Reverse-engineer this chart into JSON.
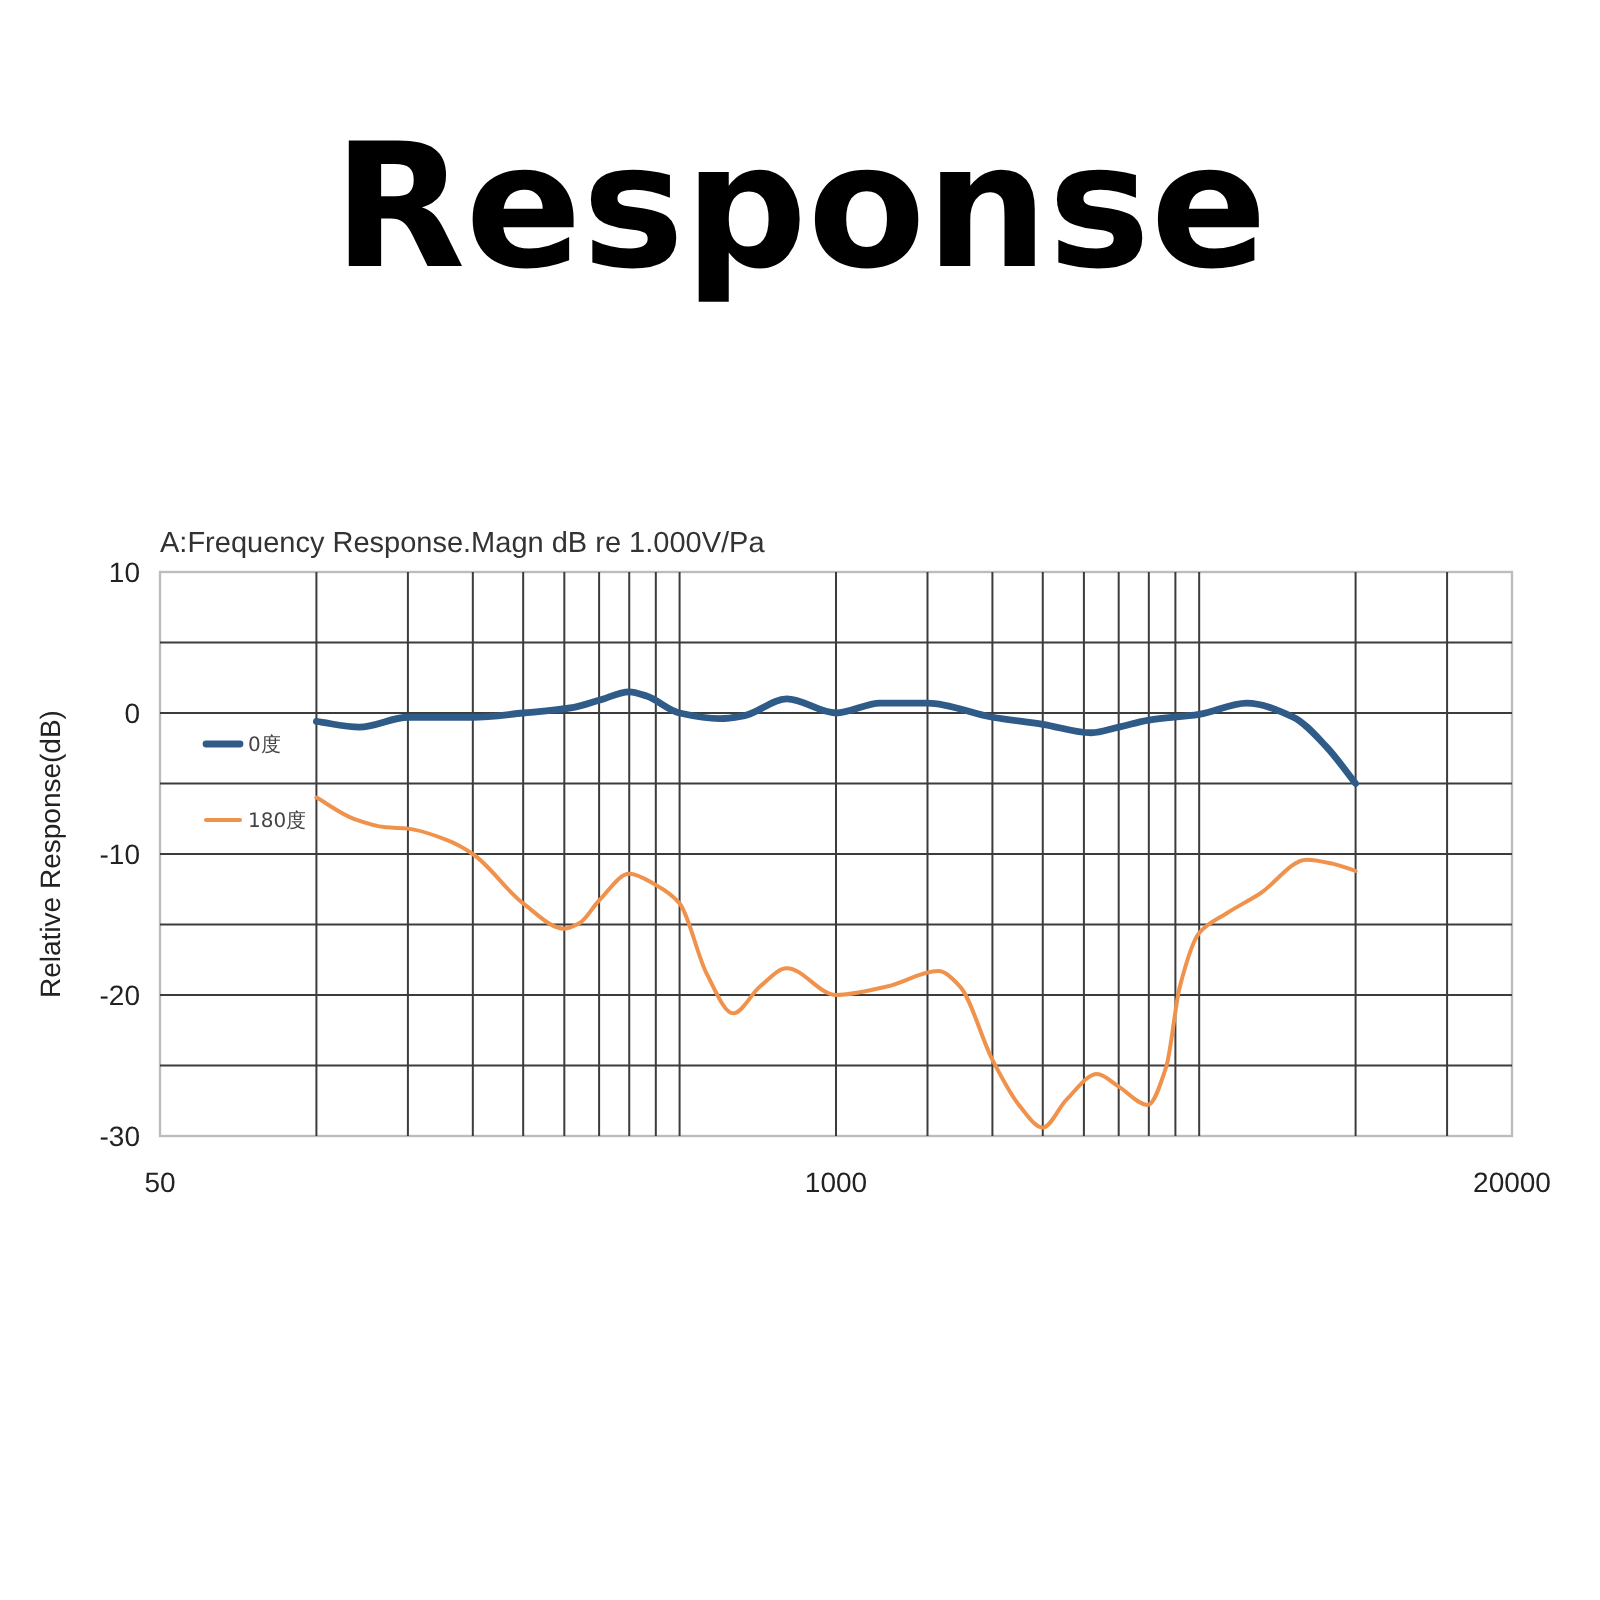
{
  "chart_data": {
    "type": "line",
    "title": "Response",
    "subtitle": "A:Frequency Response.Magn dB re 1.000V/Pa",
    "ylabel": "Relative Response(dB)",
    "log": "x",
    "xlim": [
      50,
      20000
    ],
    "xticks": [
      50,
      {
        "value": 100,
        "label": null
      },
      {
        "value": 150,
        "label": null
      },
      {
        "value": 200,
        "label": null
      },
      {
        "value": 250,
        "label": null
      },
      {
        "value": 300,
        "label": null
      },
      {
        "value": 350,
        "label": null
      },
      {
        "value": 400,
        "label": null
      },
      {
        "value": 450,
        "label": null
      },
      {
        "value": 500,
        "label": null
      },
      1000,
      {
        "value": 1500,
        "label": null
      },
      {
        "value": 2000,
        "label": null
      },
      {
        "value": 2500,
        "label": null
      },
      {
        "value": 3000,
        "label": null
      },
      {
        "value": 3500,
        "label": null
      },
      {
        "value": 4000,
        "label": null
      },
      {
        "value": 4500,
        "label": null
      },
      {
        "value": 5000,
        "label": null
      },
      {
        "value": 10000,
        "label": null
      },
      {
        "value": 15000,
        "label": null
      },
      20000
    ],
    "ylim": [
      -30,
      10
    ],
    "yticks": [
      -30,
      {
        "value": -25,
        "label": null
      },
      -20,
      {
        "value": -15,
        "label": null
      },
      -10,
      {
        "value": -5,
        "label": null
      },
      0,
      {
        "value": 5,
        "label": null
      },
      10
    ],
    "grid": true,
    "legend": "top left",
    "series": [
      {
        "name": "0度",
        "color": "#2e5b88",
        "x": [
          100,
          121,
          150,
          200,
          250,
          313,
          350,
          400,
          432,
          500,
          598,
          664,
          804,
          1000,
          1216,
          1500,
          2000,
          2500,
          3100,
          3500,
          4000,
          5000,
          6170,
          7590,
          8790,
          10000
        ],
        "values": [
          -0.6,
          -1.0,
          -0.3,
          -0.3,
          0,
          0.4,
          0.9,
          1.5,
          1.2,
          0,
          -0.4,
          -0.2,
          1.0,
          0,
          0.7,
          0.7,
          -0.3,
          -0.8,
          -1.4,
          -1.0,
          -0.5,
          -0.1,
          0.7,
          -0.3,
          -2.4,
          -5.0
        ]
      },
      {
        "name": "180度",
        "color": "#f0924c",
        "x": [
          100,
          118,
          136,
          150,
          178,
          200,
          250,
          300,
          321,
          350,
          400,
          450,
          500,
          564,
          634,
          714,
          804,
          1000,
          1253,
          1573,
          1733,
          2000,
          2260,
          2500,
          2780,
          3180,
          3500,
          3980,
          4320,
          4590,
          5000,
          5650,
          6550,
          8050,
          9060,
          10000
        ],
        "values": [
          -6.0,
          -7.5,
          -8.1,
          -8.2,
          -9.0,
          -10.0,
          -13.5,
          -15.3,
          -14.9,
          -13.3,
          -11.4,
          -12.2,
          -13.5,
          -18.5,
          -21.3,
          -19.4,
          -18.1,
          -20.0,
          -19.4,
          -18.3,
          -19.4,
          -24.6,
          -27.9,
          -29.4,
          -27.4,
          -25.6,
          -26.5,
          -27.8,
          -25.1,
          -19.4,
          -15.6,
          -14.2,
          -12.8,
          -10.4,
          -10.7,
          -11.2
        ]
      }
    ]
  }
}
